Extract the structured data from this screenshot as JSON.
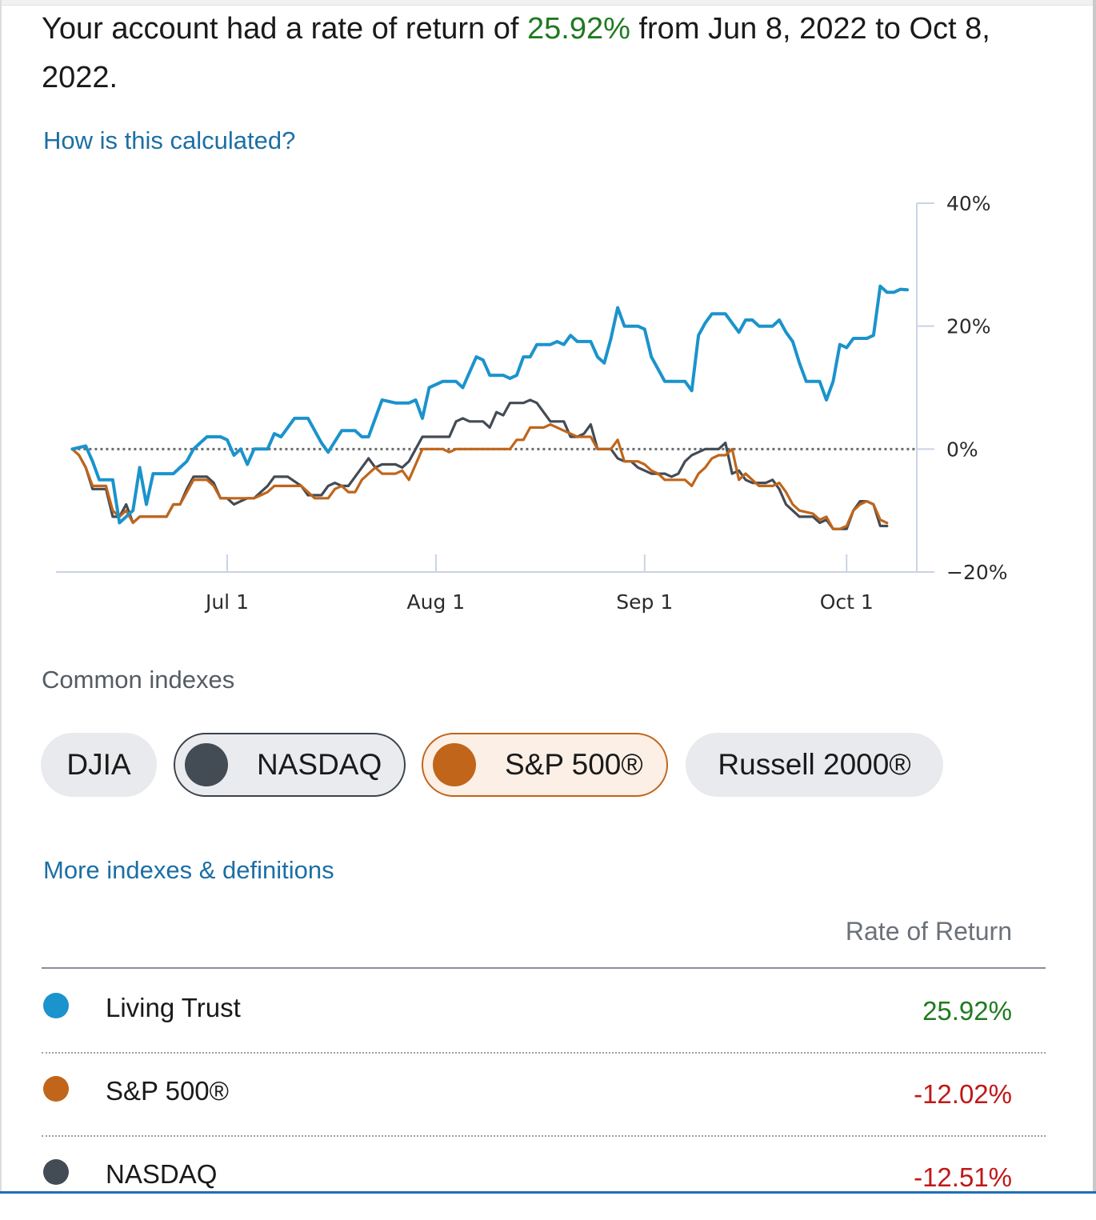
{
  "summary": {
    "prefix": "Your account had a rate of return of",
    "rate": "25.92%",
    "suffix": "from Jun 8, 2022 to Oct 8, 2022."
  },
  "links": {
    "calculation": "How is this calculated?",
    "more_indexes": "More indexes & definitions"
  },
  "colors": {
    "living_trust": "#1b93cc",
    "sp500": "#c0651a",
    "nasdaq": "#434b55",
    "positive": "#1f7a1f",
    "negative": "#c01818",
    "axis": "#c9d3e6"
  },
  "chart_data": {
    "type": "line",
    "x_unit": "days since Jun 8, 2022",
    "x_ticks": [
      {
        "day": 23,
        "label": "Jul 1"
      },
      {
        "day": 54,
        "label": "Aug 1"
      },
      {
        "day": 85,
        "label": "Sep 1"
      },
      {
        "day": 115,
        "label": "Oct 1"
      }
    ],
    "y_ticks": [
      {
        "value": 40,
        "label": "40%"
      },
      {
        "value": 20,
        "label": "20%"
      },
      {
        "value": 0,
        "label": "0%"
      },
      {
        "value": -20,
        "label": "−20%"
      }
    ],
    "xlim": [
      -1,
      124
    ],
    "ylim": [
      -20,
      40
    ],
    "baseline": 0,
    "series": [
      {
        "name": "Living Trust",
        "color": "#1b93cc",
        "points": [
          [
            0,
            0
          ],
          [
            2,
            0.5
          ],
          [
            3,
            -2
          ],
          [
            4,
            -5
          ],
          [
            6,
            -5
          ],
          [
            7,
            -12
          ],
          [
            8,
            -11
          ],
          [
            9,
            -10
          ],
          [
            10,
            -3
          ],
          [
            11,
            -9
          ],
          [
            12,
            -4
          ],
          [
            15,
            -4
          ],
          [
            16,
            -3
          ],
          [
            17,
            -2
          ],
          [
            18,
            0
          ],
          [
            19,
            1
          ],
          [
            20,
            2
          ],
          [
            22,
            2
          ],
          [
            23,
            1.5
          ],
          [
            24,
            -1
          ],
          [
            25,
            0
          ],
          [
            26,
            -2.5
          ],
          [
            27,
            0
          ],
          [
            29,
            0
          ],
          [
            30,
            2.5
          ],
          [
            31,
            2
          ],
          [
            33,
            5
          ],
          [
            35,
            5
          ],
          [
            37,
            1
          ],
          [
            38,
            -0.5
          ],
          [
            40,
            3
          ],
          [
            42,
            3
          ],
          [
            43,
            2
          ],
          [
            44,
            2
          ],
          [
            45,
            5
          ],
          [
            46,
            8
          ],
          [
            48,
            7.5
          ],
          [
            50,
            7.5
          ],
          [
            51,
            8
          ],
          [
            52,
            5
          ],
          [
            53,
            10
          ],
          [
            55,
            11
          ],
          [
            57,
            11
          ],
          [
            58,
            10
          ],
          [
            60,
            15
          ],
          [
            61,
            14.5
          ],
          [
            62,
            12
          ],
          [
            64,
            12
          ],
          [
            65,
            11.5
          ],
          [
            66,
            12
          ],
          [
            67,
            15
          ],
          [
            68,
            15
          ],
          [
            69,
            17
          ],
          [
            71,
            17
          ],
          [
            72,
            17.5
          ],
          [
            73,
            17
          ],
          [
            74,
            18.5
          ],
          [
            75,
            17.5
          ],
          [
            77,
            17.5
          ],
          [
            78,
            15
          ],
          [
            79,
            14
          ],
          [
            80,
            18
          ],
          [
            81,
            23
          ],
          [
            82,
            20
          ],
          [
            84,
            20
          ],
          [
            85,
            19.5
          ],
          [
            86,
            15
          ],
          [
            87,
            13
          ],
          [
            88,
            11
          ],
          [
            89,
            11
          ],
          [
            90,
            11
          ],
          [
            91,
            11
          ],
          [
            92,
            9.5
          ],
          [
            93,
            18.5
          ],
          [
            94,
            20.5
          ],
          [
            95,
            22
          ],
          [
            97,
            22
          ],
          [
            98,
            20.5
          ],
          [
            99,
            19
          ],
          [
            100,
            21
          ],
          [
            101,
            21
          ],
          [
            102,
            20
          ],
          [
            104,
            20
          ],
          [
            105,
            21
          ],
          [
            106,
            19
          ],
          [
            107,
            17.5
          ],
          [
            108,
            14
          ],
          [
            109,
            11
          ],
          [
            111,
            11
          ],
          [
            112,
            8
          ],
          [
            113,
            11
          ],
          [
            114,
            17
          ],
          [
            115,
            16.5
          ],
          [
            116,
            18
          ],
          [
            118,
            18
          ],
          [
            119,
            18.5
          ],
          [
            120,
            26.5
          ],
          [
            121,
            25.5
          ],
          [
            122,
            25.5
          ],
          [
            123,
            26
          ],
          [
            124,
            25.92
          ]
        ]
      },
      {
        "name": "S&P 500®",
        "color": "#c0651a",
        "points": [
          [
            0,
            0
          ],
          [
            1,
            -1
          ],
          [
            2,
            -3
          ],
          [
            3,
            -6
          ],
          [
            5,
            -6
          ],
          [
            6,
            -10
          ],
          [
            7,
            -11
          ],
          [
            8,
            -10
          ],
          [
            9,
            -12
          ],
          [
            10,
            -11
          ],
          [
            14,
            -11
          ],
          [
            15,
            -9
          ],
          [
            16,
            -9
          ],
          [
            17,
            -7
          ],
          [
            18,
            -5
          ],
          [
            20,
            -5
          ],
          [
            21,
            -6
          ],
          [
            22,
            -8
          ],
          [
            23,
            -8
          ],
          [
            24,
            -8
          ],
          [
            25,
            -8
          ],
          [
            27,
            -8
          ],
          [
            28,
            -7.5
          ],
          [
            29,
            -7
          ],
          [
            30,
            -6
          ],
          [
            31,
            -6
          ],
          [
            32,
            -6
          ],
          [
            34,
            -6
          ],
          [
            35,
            -7
          ],
          [
            36,
            -8
          ],
          [
            38,
            -8
          ],
          [
            39,
            -6.5
          ],
          [
            40,
            -6
          ],
          [
            41,
            -7
          ],
          [
            42,
            -7
          ],
          [
            43,
            -5
          ],
          [
            44,
            -4
          ],
          [
            45,
            -3
          ],
          [
            46,
            -4
          ],
          [
            48,
            -4
          ],
          [
            49,
            -3.5
          ],
          [
            50,
            -5
          ],
          [
            51,
            -2.5
          ],
          [
            52,
            0
          ],
          [
            53,
            0
          ],
          [
            55,
            0
          ],
          [
            56,
            -0.5
          ],
          [
            57,
            0
          ],
          [
            58,
            0
          ],
          [
            59,
            0
          ],
          [
            61,
            0
          ],
          [
            62,
            0
          ],
          [
            63,
            0
          ],
          [
            64,
            0
          ],
          [
            65,
            0
          ],
          [
            66,
            1.5
          ],
          [
            67,
            1.5
          ],
          [
            68,
            3.5
          ],
          [
            70,
            3.5
          ],
          [
            71,
            4
          ],
          [
            72,
            3.5
          ],
          [
            73,
            3
          ],
          [
            74,
            2.5
          ],
          [
            75,
            2
          ],
          [
            76,
            2
          ],
          [
            77,
            2
          ],
          [
            78,
            0
          ],
          [
            79,
            0
          ],
          [
            80,
            0
          ],
          [
            81,
            1.5
          ],
          [
            82,
            -2
          ],
          [
            84,
            -2
          ],
          [
            85,
            -2.5
          ],
          [
            86,
            -3.5
          ],
          [
            87,
            -4
          ],
          [
            88,
            -5
          ],
          [
            89,
            -5
          ],
          [
            91,
            -5
          ],
          [
            92,
            -6
          ],
          [
            93,
            -4
          ],
          [
            94,
            -3
          ],
          [
            95,
            -1.5
          ],
          [
            96,
            -1
          ],
          [
            97,
            -1
          ],
          [
            98,
            0
          ],
          [
            99,
            -5
          ],
          [
            100,
            -4
          ],
          [
            101,
            -5
          ],
          [
            102,
            -6
          ],
          [
            104,
            -6
          ],
          [
            105,
            -5.5
          ],
          [
            106,
            -7
          ],
          [
            107,
            -9
          ],
          [
            108,
            -10
          ],
          [
            110,
            -10.5
          ],
          [
            111,
            -11.5
          ],
          [
            112,
            -11
          ],
          [
            113,
            -13
          ],
          [
            114,
            -13
          ],
          [
            115,
            -12.5
          ],
          [
            116,
            -10
          ],
          [
            117,
            -9
          ],
          [
            118,
            -8.5
          ],
          [
            119,
            -9
          ],
          [
            120,
            -11.5
          ],
          [
            121,
            -12.02
          ]
        ]
      },
      {
        "name": "NASDAQ",
        "color": "#434b55",
        "points": [
          [
            0,
            0
          ],
          [
            1,
            -1
          ],
          [
            2,
            -3
          ],
          [
            3,
            -6.5
          ],
          [
            5,
            -6.5
          ],
          [
            6,
            -11
          ],
          [
            7,
            -11
          ],
          [
            8,
            -9
          ],
          [
            9,
            -12
          ],
          [
            10,
            -11
          ],
          [
            14,
            -11
          ],
          [
            15,
            -9
          ],
          [
            16,
            -9
          ],
          [
            17,
            -6.5
          ],
          [
            18,
            -4.5
          ],
          [
            20,
            -4.5
          ],
          [
            21,
            -5.5
          ],
          [
            22,
            -8
          ],
          [
            23,
            -8
          ],
          [
            24,
            -9
          ],
          [
            25,
            -8.5
          ],
          [
            26,
            -8
          ],
          [
            27,
            -8
          ],
          [
            28,
            -7
          ],
          [
            29,
            -6
          ],
          [
            30,
            -4.5
          ],
          [
            32,
            -4.5
          ],
          [
            34,
            -6
          ],
          [
            35,
            -7.5
          ],
          [
            37,
            -7.5
          ],
          [
            38,
            -6
          ],
          [
            39,
            -5.5
          ],
          [
            40,
            -6
          ],
          [
            41,
            -6
          ],
          [
            42,
            -4.5
          ],
          [
            43,
            -3
          ],
          [
            44,
            -1.5
          ],
          [
            45,
            -3
          ],
          [
            46,
            -2.5
          ],
          [
            48,
            -2.5
          ],
          [
            49,
            -3
          ],
          [
            50,
            -2
          ],
          [
            51,
            0
          ],
          [
            52,
            2
          ],
          [
            54,
            2
          ],
          [
            56,
            2
          ],
          [
            57,
            4.5
          ],
          [
            58,
            5
          ],
          [
            59,
            4.5
          ],
          [
            61,
            4.5
          ],
          [
            62,
            3.5
          ],
          [
            63,
            6
          ],
          [
            64,
            5.5
          ],
          [
            65,
            7.5
          ],
          [
            67,
            7.5
          ],
          [
            68,
            8
          ],
          [
            69,
            7.5
          ],
          [
            70,
            6
          ],
          [
            71,
            4.5
          ],
          [
            73,
            4.5
          ],
          [
            74,
            2
          ],
          [
            75,
            2
          ],
          [
            76,
            2.5
          ],
          [
            77,
            4
          ],
          [
            78,
            0
          ],
          [
            80,
            0
          ],
          [
            81,
            -1.5
          ],
          [
            82,
            -2
          ],
          [
            83,
            -2
          ],
          [
            84,
            -3
          ],
          [
            85,
            -3.5
          ],
          [
            86,
            -4
          ],
          [
            88,
            -4
          ],
          [
            89,
            -4.5
          ],
          [
            90,
            -4
          ],
          [
            91,
            -2
          ],
          [
            92,
            -1
          ],
          [
            93,
            -0.5
          ],
          [
            94,
            0
          ],
          [
            96,
            0
          ],
          [
            97,
            1
          ],
          [
            98,
            -4
          ],
          [
            99,
            -3.5
          ],
          [
            100,
            -5
          ],
          [
            101,
            -5.5
          ],
          [
            102,
            -5.5
          ],
          [
            103,
            -5.5
          ],
          [
            104,
            -5
          ],
          [
            105,
            -6.5
          ],
          [
            106,
            -9
          ],
          [
            107,
            -10
          ],
          [
            108,
            -11
          ],
          [
            110,
            -11
          ],
          [
            111,
            -12
          ],
          [
            112,
            -11.5
          ],
          [
            113,
            -13
          ],
          [
            114,
            -13
          ],
          [
            115,
            -13
          ],
          [
            116,
            -10
          ],
          [
            117,
            -8.5
          ],
          [
            118,
            -8.5
          ],
          [
            119,
            -9
          ],
          [
            120,
            -12.5
          ],
          [
            121,
            -12.51
          ]
        ]
      }
    ]
  },
  "indexes": {
    "title": "Common indexes",
    "chips": [
      {
        "label": "DJIA"
      },
      {
        "label": "NASDAQ"
      },
      {
        "label": "S&P 500®"
      },
      {
        "label": "Russell 2000®"
      }
    ]
  },
  "table": {
    "header": "Rate of Return",
    "rows": [
      {
        "name": "Living Trust",
        "value": "25.92%"
      },
      {
        "name": "S&P 500®",
        "value": "-12.02%"
      },
      {
        "name": "NASDAQ",
        "value": "-12.51%"
      }
    ]
  }
}
